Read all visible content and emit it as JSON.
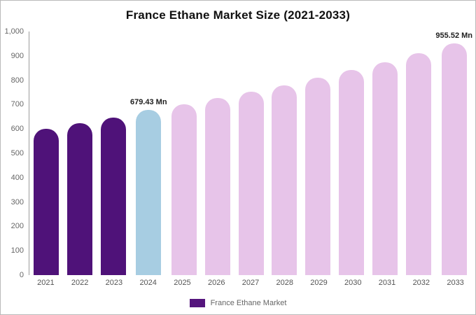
{
  "legend": {
    "label": "France Ethane Market",
    "color": "#55157d"
  },
  "chart_data": {
    "type": "bar",
    "title": "France Ethane Market Size (2021-2033)",
    "xlabel": "",
    "ylabel": "",
    "ylim": [
      0,
      1000
    ],
    "grid": false,
    "legend_position": "bottom",
    "categories": [
      "2021",
      "2022",
      "2023",
      "2024",
      "2025",
      "2026",
      "2027",
      "2028",
      "2029",
      "2030",
      "2031",
      "2032",
      "2033"
    ],
    "values": [
      600,
      624,
      648,
      679.43,
      701,
      726,
      752,
      780,
      809,
      841,
      874,
      911,
      955.52
    ],
    "bar_colors": [
      "#4f1279",
      "#4f1279",
      "#4f1279",
      "#a7cde2",
      "#e7c4e9",
      "#e7c4e9",
      "#e7c4e9",
      "#e7c4e9",
      "#e7c4e9",
      "#e7c4e9",
      "#e7c4e9",
      "#e7c4e9",
      "#e7c4e9"
    ],
    "yticks": [
      0,
      100,
      200,
      300,
      400,
      500,
      600,
      700,
      800,
      900,
      1000
    ],
    "ytick_labels": [
      "0",
      "100",
      "200",
      "300",
      "400",
      "500",
      "600",
      "700",
      "800",
      "900",
      "1,000"
    ],
    "annotations": [
      {
        "category": "2024",
        "text": "679.43 Mn"
      },
      {
        "category": "2033",
        "text": "955.52 Mn"
      }
    ]
  }
}
